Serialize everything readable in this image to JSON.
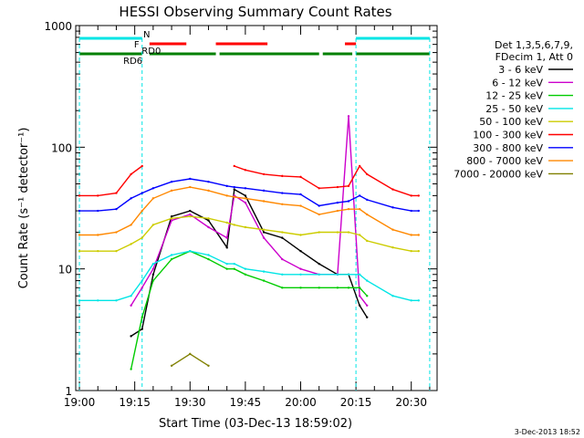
{
  "title": "HESSI Observing Summary Count Rates",
  "timestamp": "3-Dec-2013 18:52",
  "chart_data": {
    "type": "line",
    "title": "HESSI Observing Summary Count Rates",
    "xlabel": "Start Time (03-Dec-13 18:59:02)",
    "ylabel": "Count Rate (s⁻¹ detector⁻¹)",
    "yscale": "log",
    "xlim": [
      "18:59",
      "20:37"
    ],
    "ylim": [
      1,
      1000
    ],
    "x_ticks": [
      "19:00",
      "19:15",
      "19:30",
      "19:45",
      "20:00",
      "20:15",
      "20:30"
    ],
    "y_ticks": [
      "1",
      "10",
      "100",
      "1000"
    ],
    "legend": {
      "placement": "right",
      "header": [
        "Det 1,3,5,6,7,9,",
        "FDecim 1, Att 0"
      ]
    },
    "x": [
      "19:00",
      "19:05",
      "19:10",
      "19:14",
      "19:17",
      "19:20",
      "19:25",
      "19:30",
      "19:35",
      "19:40",
      "19:42",
      "19:45",
      "19:50",
      "19:55",
      "20:00",
      "20:05",
      "20:10",
      "20:13",
      "20:16",
      "20:18",
      "20:25",
      "20:30",
      "20:32"
    ],
    "series": [
      {
        "name": "3 - 6 keV",
        "color": "#000000",
        "values": [
          null,
          null,
          null,
          2.8,
          3.2,
          9,
          27,
          30,
          25,
          15,
          45,
          40,
          20,
          18,
          14,
          11,
          9,
          9,
          5,
          4,
          null,
          null,
          null
        ]
      },
      {
        "name": "6 - 12 keV",
        "color": "#cc00cc",
        "values": [
          null,
          null,
          null,
          5,
          7,
          10,
          25,
          28,
          22,
          18,
          40,
          35,
          18,
          12,
          10,
          9,
          9,
          180,
          6,
          5,
          null,
          null,
          null
        ]
      },
      {
        "name": "12 - 25 keV",
        "color": "#00cc00",
        "values": [
          null,
          null,
          null,
          1.5,
          4,
          8,
          12,
          14,
          12,
          10,
          10,
          9,
          8,
          7,
          7,
          7,
          7,
          7,
          7,
          6,
          null,
          null,
          null
        ]
      },
      {
        "name": "25 - 50 keV",
        "color": "#00e5e5",
        "values": [
          5.5,
          5.5,
          5.5,
          6,
          8,
          11,
          13,
          14,
          13,
          11,
          11,
          10,
          9.5,
          9,
          9,
          9,
          9,
          9,
          9,
          8,
          6,
          5.5,
          5.5
        ]
      },
      {
        "name": "50 - 100 keV",
        "color": "#cccc00",
        "values": [
          14,
          14,
          14,
          16,
          18,
          23,
          26,
          27,
          26,
          24,
          23,
          22,
          21,
          20,
          19,
          20,
          20,
          20,
          19,
          17,
          15,
          14,
          14
        ]
      },
      {
        "name": "100 - 300 keV",
        "color": "#ff0000",
        "values": [
          40,
          40,
          42,
          60,
          70,
          null,
          null,
          null,
          null,
          null,
          70,
          65,
          60,
          58,
          57,
          46,
          47,
          48,
          70,
          60,
          45,
          40,
          40
        ]
      },
      {
        "name": "300 - 800 keV",
        "color": "#0000ff",
        "values": [
          30,
          30,
          31,
          38,
          42,
          46,
          52,
          55,
          52,
          48,
          47,
          46,
          44,
          42,
          41,
          33,
          35,
          36,
          40,
          37,
          32,
          30,
          30
        ]
      },
      {
        "name": "800 - 7000 keV",
        "color": "#ff8800",
        "values": [
          19,
          19,
          20,
          23,
          30,
          38,
          44,
          47,
          44,
          40,
          39,
          38,
          36,
          34,
          33,
          28,
          30,
          31,
          31,
          28,
          21,
          19,
          19
        ]
      },
      {
        "name": "7000 - 20000 keV",
        "color": "#808000",
        "values": [
          null,
          null,
          null,
          null,
          null,
          null,
          1.6,
          2,
          1.6,
          null,
          null,
          null,
          null,
          null,
          null,
          null,
          null,
          null,
          null,
          null,
          null,
          null,
          null
        ]
      }
    ],
    "flags": [
      {
        "label": "N",
        "color": "#00e5e5",
        "intervals": [
          [
            "19:00",
            "19:17"
          ],
          [
            "20:15",
            "20:35"
          ]
        ]
      },
      {
        "label": "F",
        "color": "#ff0000",
        "intervals": [
          [
            "19:19",
            "19:29"
          ],
          [
            "19:37",
            "19:51"
          ],
          [
            "20:12",
            "20:15"
          ]
        ]
      },
      {
        "label": "RD0",
        "color": "#008000",
        "intervals": [
          [
            "19:00",
            "19:17"
          ],
          [
            "19:19",
            "19:37"
          ],
          [
            "19:38",
            "20:05"
          ],
          [
            "20:06",
            "20:14"
          ],
          [
            "20:15",
            "20:35"
          ]
        ]
      },
      {
        "label": "RD6",
        "color": "#008000"
      }
    ]
  }
}
